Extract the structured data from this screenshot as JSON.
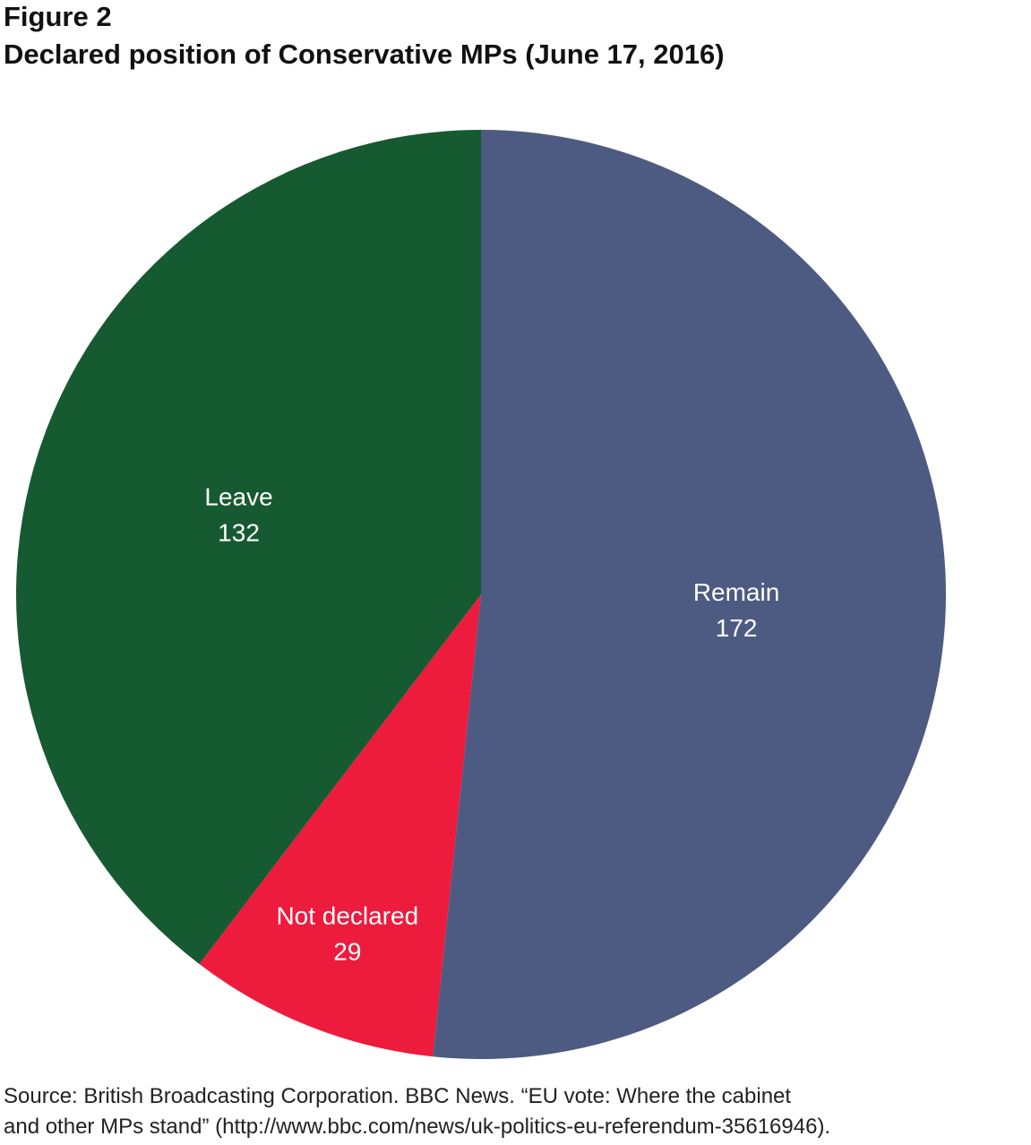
{
  "figure": {
    "label": "Figure 2",
    "title": "Declared position of Conservative MPs (June 17, 2016)"
  },
  "chart_data": {
    "type": "pie",
    "categories": [
      "Remain",
      "Not declared",
      "Leave"
    ],
    "values": [
      172,
      29,
      132
    ],
    "colors": [
      "#4d5a82",
      "#ed1b3c",
      "#165a31"
    ],
    "start": "12 o'clock",
    "direction": "clockwise"
  },
  "source": {
    "line1": "Source: British Broadcasting Corporation. BBC News. “EU vote: Where the cabinet",
    "line2": "and other MPs stand” (http://www.bbc.com/news/uk-politics-eu-referendum-35616946)."
  }
}
